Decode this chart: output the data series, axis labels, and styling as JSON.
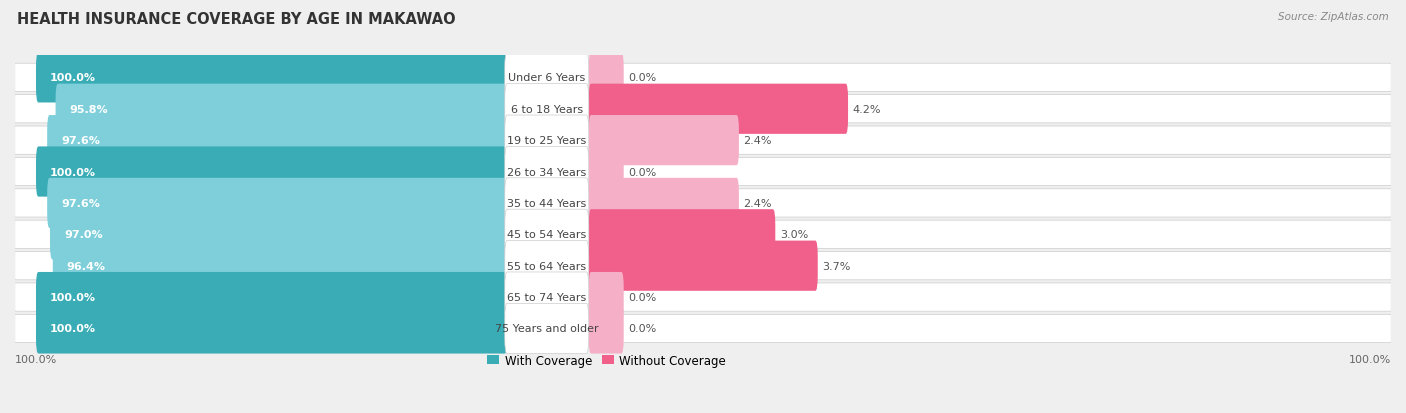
{
  "title": "HEALTH INSURANCE COVERAGE BY AGE IN MAKAWAO",
  "source": "Source: ZipAtlas.com",
  "categories": [
    "Under 6 Years",
    "6 to 18 Years",
    "19 to 25 Years",
    "26 to 34 Years",
    "35 to 44 Years",
    "45 to 54 Years",
    "55 to 64 Years",
    "65 to 74 Years",
    "75 Years and older"
  ],
  "with_coverage": [
    100.0,
    95.8,
    97.6,
    100.0,
    97.6,
    97.0,
    96.4,
    100.0,
    100.0
  ],
  "without_coverage": [
    0.0,
    4.2,
    2.4,
    0.0,
    2.4,
    3.0,
    3.7,
    0.0,
    0.0
  ],
  "color_with_dark": "#3AACB5",
  "color_with_light": "#7ECFDA",
  "color_without_dark": "#F0608A",
  "color_without_light": "#F5B0C8",
  "bg_color": "#EFEFEF",
  "row_bg": "#FFFFFF",
  "row_edge": "#DDDDDD",
  "title_fontsize": 10.5,
  "label_fontsize": 8,
  "tick_fontsize": 8,
  "legend_fontsize": 8.5,
  "source_fontsize": 7.5
}
